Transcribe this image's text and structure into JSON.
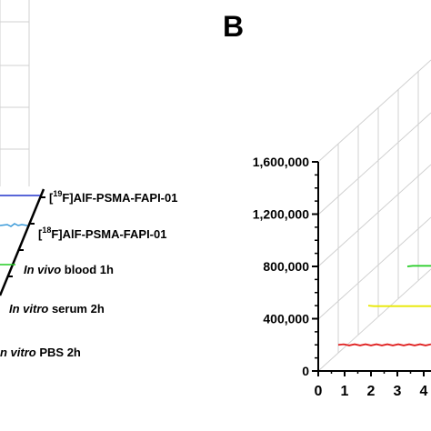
{
  "panel_b_letter": "B",
  "panel_a_labels": [
    {
      "superscript": "19",
      "text": "F]AlF-PSMA-FAPI-01",
      "color": "#2233cc"
    },
    {
      "superscript": "18",
      "text": "F]AlF-PSMA-FAPI-01",
      "color": "#3a9ad9"
    },
    {
      "italic": "In vivo",
      "text": " blood 1h",
      "color": "#22cc22"
    },
    {
      "italic": "In vitro",
      "text": " serum 2h",
      "color": "#e8e800"
    },
    {
      "italic": "n vitro",
      "text": " PBS 2h",
      "color": "#e02020"
    }
  ],
  "chart_data": {
    "type": "line",
    "panel": "B",
    "y_ticks": [
      "0",
      "400,000",
      "800,000",
      "1,200,000",
      "1,600,000"
    ],
    "x_ticks": [
      "0",
      "1",
      "2",
      "3",
      "4"
    ],
    "ylim": [
      0,
      1600000
    ],
    "series": [
      {
        "color": "#e02020",
        "level": 200000
      },
      {
        "color": "#e8e800",
        "level": 500000
      },
      {
        "color": "#22cc22",
        "level": 800000
      }
    ]
  }
}
